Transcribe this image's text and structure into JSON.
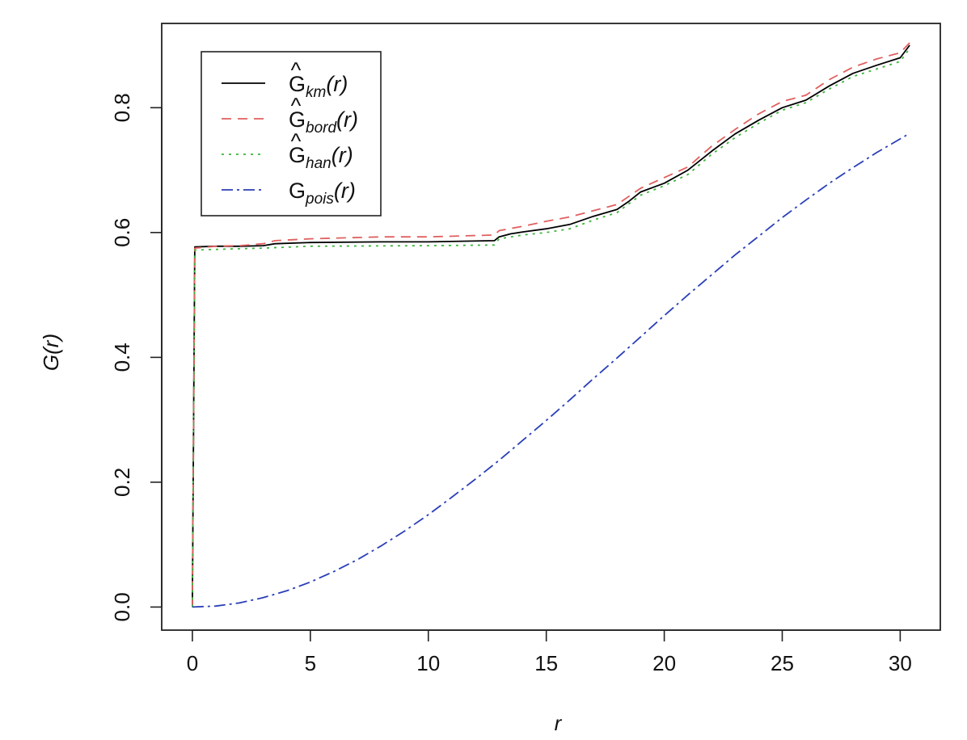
{
  "chart_data": {
    "type": "line",
    "xlabel": "r",
    "ylabel": "G(r)",
    "xlim": [
      -1.3,
      31.7
    ],
    "ylim": [
      -0.037,
      0.935
    ],
    "xticks": [
      "0",
      "5",
      "10",
      "15",
      "20",
      "25",
      "30"
    ],
    "yticks": [
      "0.0",
      "0.2",
      "0.4",
      "0.6",
      "0.8"
    ],
    "legend_position": "top-left",
    "series": [
      {
        "name": "Ĝkm(r)",
        "legend": {
          "hat": "^",
          "base": "G",
          "sub": "km",
          "arg": "(r)"
        },
        "color": "#000000",
        "dash": "",
        "x": [
          0,
          0.1,
          1,
          2,
          3,
          3.5,
          5,
          8,
          10,
          12.8,
          13,
          13.5,
          14,
          15,
          16,
          17,
          18,
          18.5,
          19,
          20,
          21,
          22,
          23,
          24,
          25,
          26,
          27,
          28,
          29,
          30,
          30.4
        ],
        "y": [
          0,
          0.577,
          0.578,
          0.578,
          0.579,
          0.582,
          0.584,
          0.585,
          0.585,
          0.587,
          0.593,
          0.598,
          0.601,
          0.606,
          0.613,
          0.626,
          0.637,
          0.65,
          0.665,
          0.679,
          0.7,
          0.73,
          0.758,
          0.78,
          0.8,
          0.812,
          0.835,
          0.855,
          0.868,
          0.88,
          0.9
        ]
      },
      {
        "name": "Ĝbord(r)",
        "legend": {
          "hat": "^",
          "base": "G",
          "sub": "bord",
          "arg": "(r)"
        },
        "color": "#e0605f",
        "dash": "12,8",
        "x": [
          0,
          0.1,
          1,
          2,
          3,
          3.5,
          5,
          8,
          10,
          12.8,
          13,
          14,
          15,
          16,
          17,
          18,
          19,
          20,
          21,
          22,
          23,
          24,
          25,
          26,
          27,
          28,
          29,
          30,
          30.4
        ],
        "y": [
          0,
          0.575,
          0.578,
          0.579,
          0.582,
          0.587,
          0.59,
          0.593,
          0.593,
          0.596,
          0.603,
          0.61,
          0.618,
          0.625,
          0.635,
          0.645,
          0.671,
          0.688,
          0.705,
          0.738,
          0.765,
          0.79,
          0.81,
          0.82,
          0.845,
          0.865,
          0.878,
          0.888,
          0.904
        ]
      },
      {
        "name": "Ĝhan(r)",
        "legend": {
          "hat": "^",
          "base": "G",
          "sub": "han",
          "arg": "(r)"
        },
        "color": "#3cb53c",
        "dash": "3,6",
        "x": [
          0,
          0.1,
          1,
          3,
          5,
          10,
          12.8,
          13,
          14,
          15,
          16,
          17,
          18,
          19,
          20,
          21,
          22,
          23,
          24,
          25,
          26,
          27,
          28,
          29,
          30,
          30.4
        ],
        "y": [
          0,
          0.572,
          0.573,
          0.575,
          0.578,
          0.579,
          0.58,
          0.59,
          0.596,
          0.6,
          0.606,
          0.62,
          0.632,
          0.66,
          0.675,
          0.693,
          0.725,
          0.752,
          0.775,
          0.796,
          0.808,
          0.83,
          0.85,
          0.862,
          0.874,
          0.895
        ]
      },
      {
        "name": "Gpois(r)",
        "legend": {
          "hat": "",
          "base": "G",
          "sub": "pois",
          "arg": "(r)"
        },
        "color": "#2a3fb8",
        "dash": "14,5,3,5",
        "x": [
          0,
          1,
          2,
          3,
          4,
          5,
          6,
          7,
          8,
          9,
          10,
          11,
          12,
          13,
          14,
          15,
          16,
          17,
          18,
          19,
          20,
          21,
          22,
          23,
          24,
          25,
          26,
          27,
          28,
          29,
          30,
          30.4
        ],
        "y": [
          0,
          0.0016,
          0.0066,
          0.015,
          0.026,
          0.04,
          0.057,
          0.076,
          0.098,
          0.122,
          0.148,
          0.176,
          0.205,
          0.235,
          0.267,
          0.299,
          0.332,
          0.366,
          0.399,
          0.433,
          0.467,
          0.5,
          0.532,
          0.564,
          0.594,
          0.624,
          0.652,
          0.679,
          0.704,
          0.728,
          0.75,
          0.759
        ]
      }
    ]
  }
}
